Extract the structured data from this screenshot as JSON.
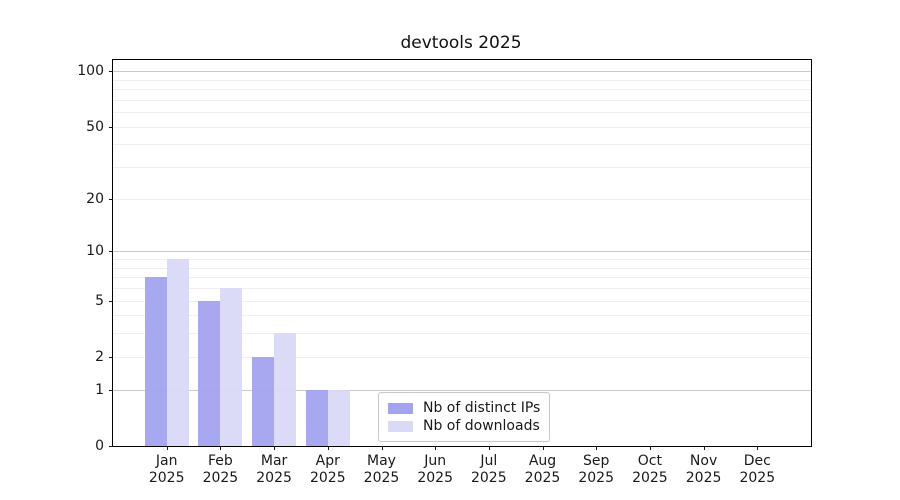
{
  "chart_data": {
    "type": "bar",
    "title": "devtools 2025",
    "categories": [
      "Jan 2025",
      "Feb 2025",
      "Mar 2025",
      "Apr 2025",
      "May 2025",
      "Jun 2025",
      "Jul 2025",
      "Aug 2025",
      "Sep 2025",
      "Oct 2025",
      "Nov 2025",
      "Dec 2025"
    ],
    "x_tick_months": [
      "Jan",
      "Feb",
      "Mar",
      "Apr",
      "May",
      "Jun",
      "Jul",
      "Aug",
      "Sep",
      "Oct",
      "Nov",
      "Dec"
    ],
    "x_tick_year": "2025",
    "series": [
      {
        "name": "Nb of distinct IPs",
        "color": "#a3a3f0",
        "values": [
          7,
          5,
          2,
          1,
          0,
          0,
          0,
          0,
          0,
          0,
          0,
          0
        ]
      },
      {
        "name": "Nb of downloads",
        "color": "#d9d9f8",
        "values": [
          9,
          6,
          3,
          1,
          0,
          0,
          0,
          0,
          0,
          0,
          0,
          0
        ]
      }
    ],
    "y_axis": {
      "scale": "log10(1+x)",
      "tick_values": [
        0,
        1,
        2,
        5,
        10,
        20,
        50,
        100
      ],
      "tick_labels": [
        "0",
        "1",
        "2",
        "5",
        "10",
        "20",
        "50",
        "100"
      ],
      "grid_major_values": [
        1,
        10,
        100
      ],
      "grid_minor_values": [
        2,
        3,
        4,
        5,
        6,
        7,
        8,
        9,
        20,
        30,
        40,
        50,
        60,
        70,
        80,
        90
      ],
      "ylim": [
        0,
        115
      ]
    },
    "xlabel": "",
    "ylabel": "",
    "grid": "horizontal major+minor",
    "legend_position": "lower-center-inside",
    "colors": {
      "grid_major": "#c9c9c9",
      "grid_minor": "#efefef",
      "axis": "#000000",
      "text": "#1a1a1a",
      "background": "#ffffff"
    }
  }
}
